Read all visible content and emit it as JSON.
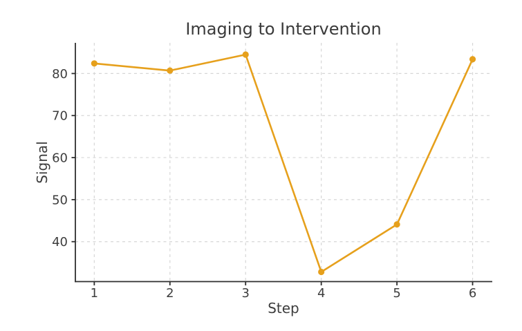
{
  "figure": {
    "background": "#ffffff"
  },
  "chart_data": {
    "type": "line",
    "title": "Imaging to Intervention",
    "xlabel": "Step",
    "ylabel": "Signal",
    "x": [
      1,
      2,
      3,
      4,
      5,
      6
    ],
    "series": [
      {
        "name": "Signal",
        "values": [
          82.4,
          80.7,
          84.5,
          32.8,
          44.1,
          83.4
        ]
      }
    ],
    "x_tick_labels": [
      "1",
      "2",
      "3",
      "4",
      "5",
      "6"
    ],
    "x_tick_values": [
      1,
      2,
      3,
      4,
      5,
      6
    ],
    "y_tick_labels": [
      "40",
      "50",
      "60",
      "70",
      "80"
    ],
    "y_tick_values": [
      40,
      50,
      60,
      70,
      80
    ],
    "xlim": [
      0.75,
      6.26
    ],
    "ylim": [
      30.5,
      87.3
    ],
    "grid": true,
    "legend": "none",
    "style": {
      "line_color": "#E6A01C",
      "marker_color": "#E6A01C",
      "grid_color": "#d6d6d6",
      "spine_color": "#2e2e2e",
      "tick_text_color": "#3d3d3d",
      "title_color": "#3a3a3a"
    }
  }
}
